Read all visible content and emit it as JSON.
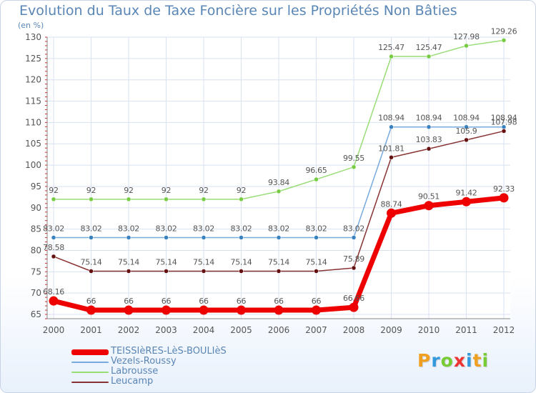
{
  "chart_data": {
    "type": "line",
    "title": "Evolution du Taux de Taxe Foncière sur les Propriétés Non Bâties",
    "ylabel": "(en %)",
    "xlabel": "",
    "ylim": [
      64,
      130
    ],
    "yticks": [
      65,
      70,
      75,
      80,
      85,
      90,
      95,
      100,
      105,
      110,
      115,
      120,
      125,
      130
    ],
    "categories": [
      "2000",
      "2001",
      "2002",
      "2003",
      "2004",
      "2005",
      "2006",
      "2007",
      "2008",
      "2009",
      "2010",
      "2011",
      "2012"
    ],
    "series": [
      {
        "name": "Labrousse",
        "color": "#99dd77",
        "marker": "#77cc44",
        "bold": false,
        "values": [
          92,
          92,
          92,
          92,
          92,
          92,
          93.84,
          96.65,
          99.55,
          125.47,
          125.47,
          127.98,
          129.26
        ],
        "labels": [
          "92",
          "92",
          "92",
          "92",
          "92",
          "92",
          "93.84",
          "96.65",
          "99.55",
          "125.47",
          "125.47",
          "127.98",
          "129.26"
        ]
      },
      {
        "name": "Vezels-Roussy",
        "color": "#77aadd",
        "marker": "#3a82be",
        "bold": false,
        "values": [
          83.02,
          83.02,
          83.02,
          83.02,
          83.02,
          83.02,
          83.02,
          83.02,
          83.02,
          108.94,
          108.94,
          108.94,
          108.94
        ],
        "labels": [
          "83.02",
          "83.02",
          "83.02",
          "83.02",
          "83.02",
          "83.02",
          "83.02",
          "83.02",
          "83.02",
          "108.94",
          "108.94",
          "108.94",
          "108.94"
        ]
      },
      {
        "name": "Leucamp",
        "color": "#883333",
        "marker": "#661111",
        "bold": false,
        "values": [
          78.58,
          75.14,
          75.14,
          75.14,
          75.14,
          75.14,
          75.14,
          75.14,
          75.89,
          101.81,
          103.83,
          105.9,
          107.98
        ],
        "labels": [
          "78.58",
          "75.14",
          "75.14",
          "75.14",
          "75.14",
          "75.14",
          "75.14",
          "75.14",
          "75.89",
          "101.81",
          "103.83",
          "105.9",
          "107.98"
        ]
      },
      {
        "name": "TEISSIèRES-LèS-BOULIèS",
        "color": "#ee0000",
        "marker": "#ee0000",
        "bold": true,
        "values": [
          68.16,
          66,
          66,
          66,
          66,
          66,
          66,
          66,
          66.66,
          88.74,
          90.51,
          91.42,
          92.33
        ],
        "labels": [
          "68.16",
          "66",
          "66",
          "66",
          "66",
          "66",
          "66",
          "66",
          "66.66",
          "88.74",
          "90.51",
          "91.42",
          "92.33"
        ]
      }
    ],
    "legend_order": [
      3,
      1,
      0,
      2
    ]
  },
  "logo": {
    "letters": [
      "P",
      "r",
      "o",
      "x",
      "i",
      "t",
      "i"
    ],
    "colors": [
      "#f0a020",
      "#3399dd",
      "#77cc33",
      "#ee3333",
      "#3399dd",
      "#f0a020",
      "#77cc33"
    ]
  }
}
